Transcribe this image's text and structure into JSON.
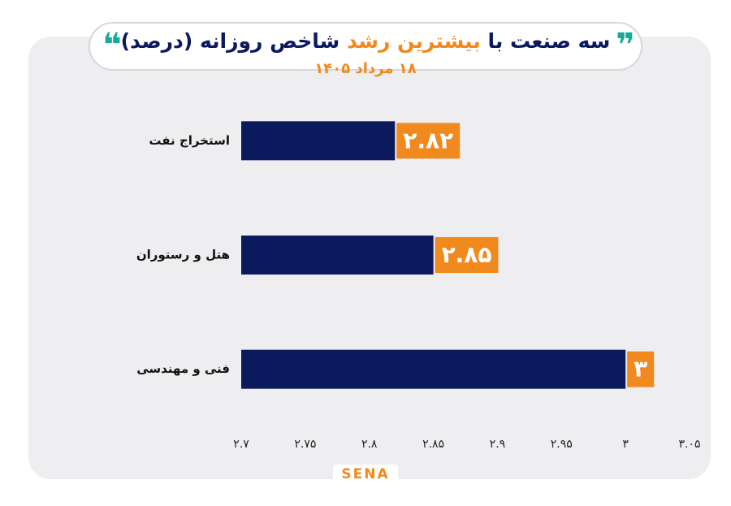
{
  "chart_data": {
    "type": "barh",
    "title_parts": [
      "سه صنعت با",
      "بیشترین رشد",
      "شاخص روزانه (درصد)"
    ],
    "subtitle": "۱۸ مرداد ۱۴۰۵",
    "categories": [
      "استخراج نفت",
      "هتل و رستوران",
      "فنی و مهندسی"
    ],
    "values": [
      2.82,
      2.85,
      3
    ],
    "value_labels": [
      "۲.۸۲",
      "۲.۸۵",
      "۳"
    ],
    "color": "#0b1a5c",
    "label_color": "#f08a1e",
    "xlim": [
      2.7,
      3.05
    ],
    "xticks": [
      {
        "value": 2.7,
        "label": "۲.۷"
      },
      {
        "value": 2.75,
        "label": "۲.۷۵"
      },
      {
        "value": 2.8,
        "label": "۲.۸"
      },
      {
        "value": 2.85,
        "label": "۲.۸۵"
      },
      {
        "value": 2.9,
        "label": "۲.۹"
      },
      {
        "value": 2.95,
        "label": "۲.۹۵"
      },
      {
        "value": 3,
        "label": "۳"
      },
      {
        "value": 3.05,
        "label": "۳.۰۵"
      }
    ],
    "grid": false,
    "logo": "SENA"
  }
}
